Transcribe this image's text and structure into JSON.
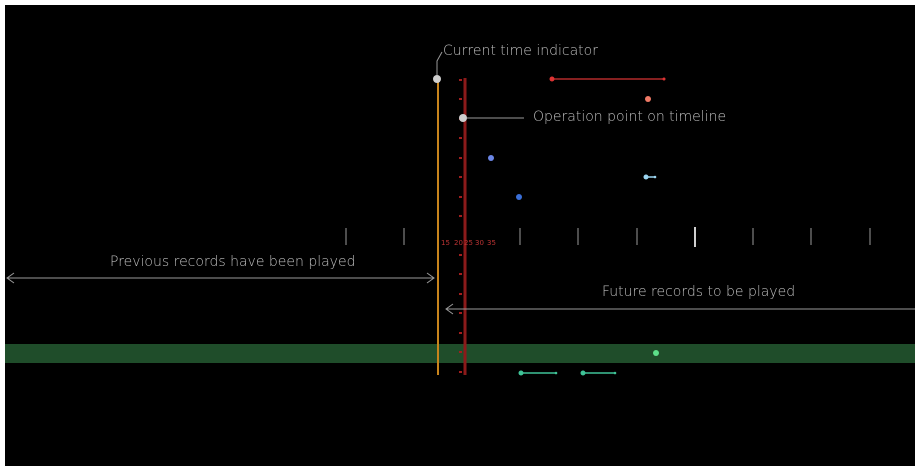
{
  "annotations": {
    "current_time_indicator": "Current time indicator",
    "operation_point": "Operation point on timeline",
    "previous_records": "Previous records have been played",
    "future_records": "Future records to be played"
  },
  "ruler_labels": [
    "15",
    "20",
    "25",
    "30",
    "35"
  ],
  "colors": {
    "background": "#000000",
    "current_time_line": "#c8841c",
    "timeline_ruler": "#8b1a1a",
    "green_track": "#1f4d2a",
    "annotation_text": "#bdbdbd"
  }
}
